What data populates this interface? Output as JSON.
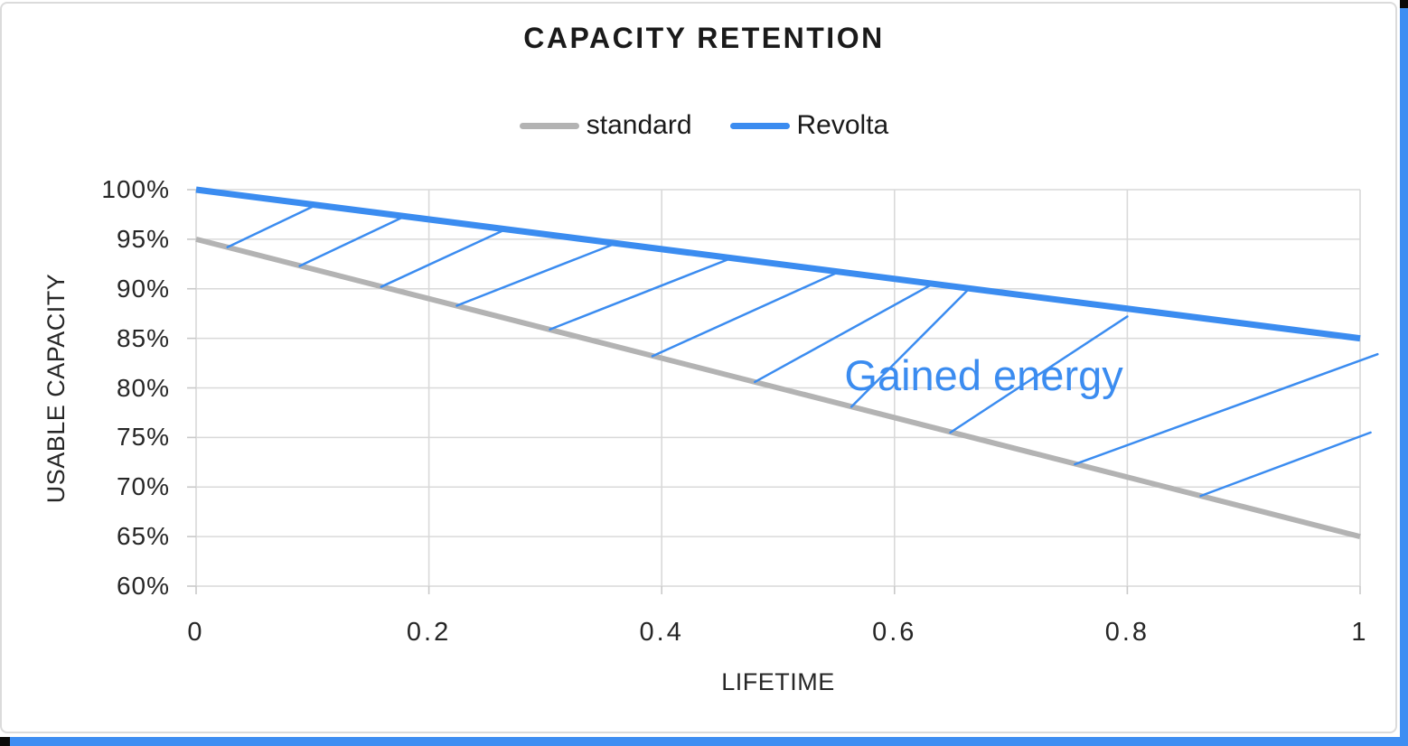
{
  "title": "CAPACITY RETENTION",
  "colors": {
    "accent_blue": "#3B8CF0",
    "series_gray": "#B3B3B3",
    "gridline": "#D9D9D9",
    "tick_mark": "#C9C9C9",
    "frame_border": "#DBDBDB",
    "edge_bar_blue": "#3E8EF2",
    "text_dark": "#1A1A1A"
  },
  "legend": {
    "items": [
      {
        "label": "standard",
        "color": "#B3B3B3"
      },
      {
        "label": "Revolta",
        "color": "#3B8CF0"
      }
    ]
  },
  "chart_data": {
    "type": "line",
    "title": "CAPACITY RETENTION",
    "xlabel": "LIFETIME",
    "ylabel": "USABLE CAPACITY",
    "xlim": [
      0,
      1
    ],
    "ylim": [
      60,
      100
    ],
    "grid": true,
    "legend_position": "top",
    "x_ticks": {
      "values": [
        0,
        0.2,
        0.4,
        0.6,
        0.8,
        1
      ],
      "labels": [
        "0",
        "0.2",
        "0.4",
        "0.6",
        "0.8",
        "1"
      ]
    },
    "y_ticks": {
      "values": [
        100,
        95,
        90,
        85,
        80,
        75,
        70,
        65,
        60
      ],
      "labels": [
        "100%",
        "95%",
        "90%",
        "85%",
        "80%",
        "75%",
        "70%",
        "65%",
        "60%"
      ]
    },
    "series": [
      {
        "name": "standard",
        "color": "#B3B3B3",
        "width": 6,
        "points": [
          [
            0,
            95
          ],
          [
            1,
            65
          ]
        ]
      },
      {
        "name": "Revolta",
        "color": "#3B8CF0",
        "width": 7,
        "points": [
          [
            0,
            100
          ],
          [
            1,
            85
          ]
        ]
      }
    ],
    "hatch": {
      "color": "#3B8CF0",
      "width": 2.5,
      "segments": [
        [
          0.027,
          94.2,
          0.103,
          98.45
        ],
        [
          0.089,
          92.3,
          0.179,
          97.3
        ],
        [
          0.159,
          90.2,
          0.266,
          96.0
        ],
        [
          0.224,
          88.3,
          0.361,
          94.6
        ],
        [
          0.304,
          85.9,
          0.46,
          93.1
        ],
        [
          0.392,
          83.2,
          0.552,
          91.7
        ],
        [
          0.48,
          80.6,
          0.633,
          90.5
        ],
        [
          0.563,
          78.1,
          0.664,
          90.0
        ],
        [
          0.648,
          75.5,
          0.8,
          87.2
        ],
        [
          0.755,
          72.3,
          1.015,
          83.4
        ],
        [
          0.863,
          69.1,
          1.009,
          75.5
        ]
      ]
    },
    "annotation": {
      "text": "Gained energy",
      "x": 0.557,
      "y": 83.8
    }
  }
}
